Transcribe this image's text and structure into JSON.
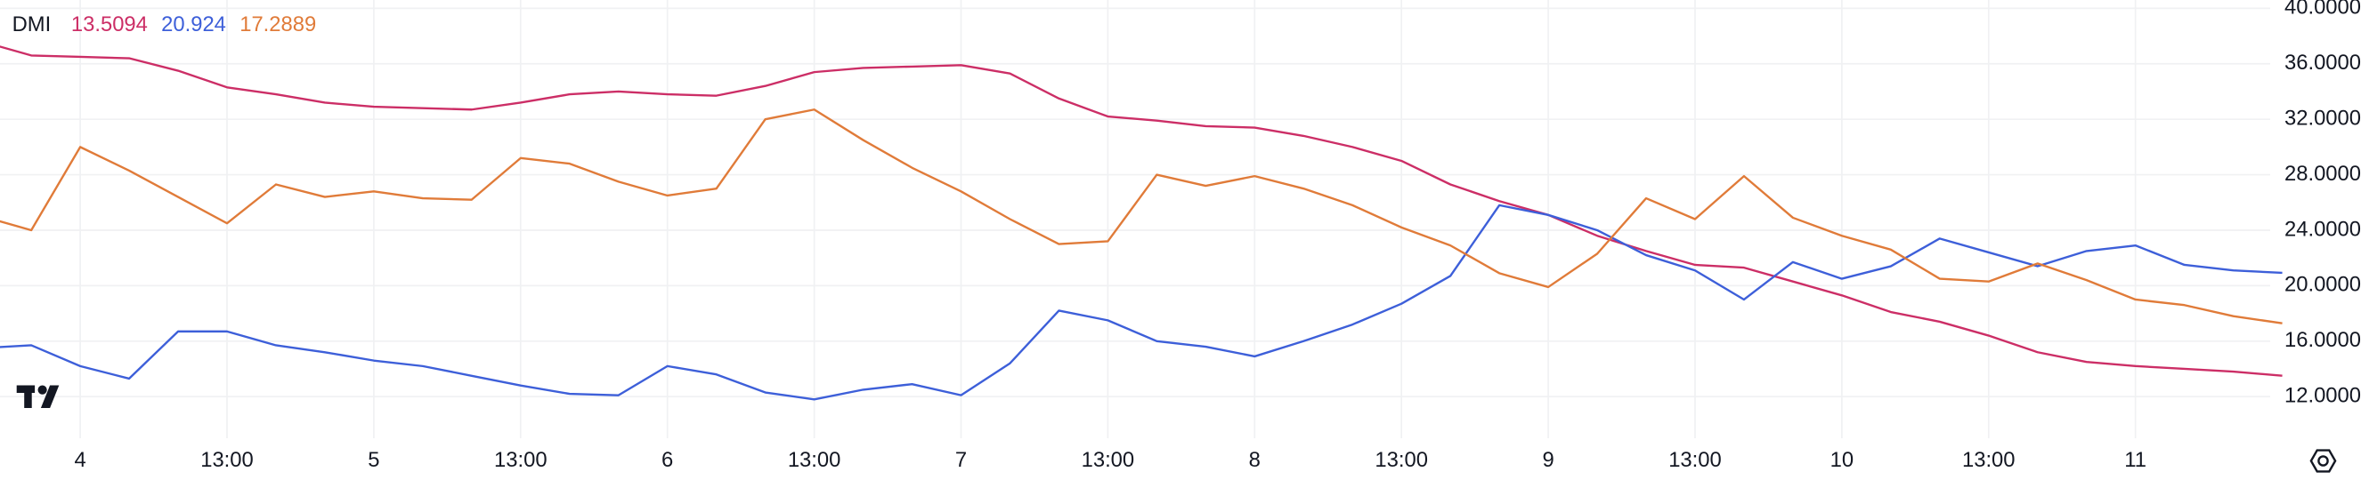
{
  "chart_data": {
    "type": "line",
    "title": "DMI",
    "categories": [
      null,
      null,
      "4",
      null,
      null,
      "13:00",
      null,
      null,
      "5",
      null,
      null,
      "13:00",
      null,
      null,
      "6",
      null,
      null,
      "13:00",
      null,
      null,
      "7",
      null,
      null,
      "13:00",
      null,
      null,
      "8",
      null,
      null,
      "13:00",
      null,
      null,
      "9",
      null,
      null,
      "13:00",
      null,
      null,
      "10",
      null,
      null,
      "13:00",
      null,
      null,
      "11",
      null,
      null,
      null
    ],
    "series": [
      {
        "color": "#cc2e66",
        "values": [
          37.6,
          36.6,
          36.5,
          36.4,
          35.5,
          34.3,
          33.8,
          33.2,
          32.9,
          32.8,
          32.7,
          33.2,
          33.8,
          34.0,
          33.8,
          33.7,
          34.4,
          35.4,
          35.7,
          35.8,
          35.9,
          35.3,
          33.5,
          32.2,
          31.9,
          31.5,
          31.4,
          30.8,
          30.0,
          29.0,
          27.3,
          26.1,
          25.1,
          23.6,
          22.5,
          21.5,
          21.3,
          20.3,
          19.3,
          18.1,
          17.4,
          16.4,
          15.2,
          14.5,
          14.2,
          14.0,
          13.8,
          13.5094
        ]
      },
      {
        "color": "#3d5fd9",
        "values": [
          15.5,
          15.7,
          14.2,
          13.3,
          16.7,
          16.7,
          15.7,
          15.2,
          14.6,
          14.2,
          13.5,
          12.8,
          12.2,
          12.1,
          14.2,
          13.6,
          12.3,
          11.8,
          12.5,
          12.9,
          12.1,
          14.4,
          18.2,
          17.5,
          16.0,
          15.6,
          14.9,
          16.0,
          17.2,
          18.7,
          20.7,
          25.8,
          25.1,
          24.0,
          22.2,
          21.1,
          19.0,
          21.7,
          20.5,
          21.4,
          23.4,
          22.4,
          21.4,
          22.5,
          22.9,
          21.5,
          21.1,
          20.924
        ]
      },
      {
        "color": "#e07b39",
        "values": [
          25.0,
          24.0,
          30.0,
          28.3,
          26.4,
          24.5,
          27.3,
          26.4,
          26.8,
          26.3,
          26.2,
          29.2,
          28.8,
          27.5,
          26.5,
          27.0,
          32.0,
          32.7,
          30.5,
          28.5,
          26.8,
          24.8,
          23.0,
          23.2,
          28.0,
          27.2,
          27.9,
          27.0,
          25.8,
          24.2,
          22.9,
          20.9,
          19.9,
          22.3,
          26.3,
          24.8,
          27.9,
          24.9,
          23.6,
          22.6,
          20.5,
          20.3,
          21.6,
          20.4,
          19.0,
          18.6,
          17.8,
          17.2889
        ]
      }
    ],
    "ylim": [
      9,
      40.6
    ],
    "yticks": [
      {
        "value": 12,
        "label": "12.0000"
      },
      {
        "value": 16,
        "label": "16.0000"
      },
      {
        "value": 20,
        "label": "20.0000"
      },
      {
        "value": 24,
        "label": "24.0000"
      },
      {
        "value": 28,
        "label": "28.0000"
      },
      {
        "value": 32,
        "label": "32.0000"
      },
      {
        "value": 36,
        "label": "36.0000"
      },
      {
        "value": 40,
        "label": "40.0000"
      }
    ],
    "grid": true
  }
}
